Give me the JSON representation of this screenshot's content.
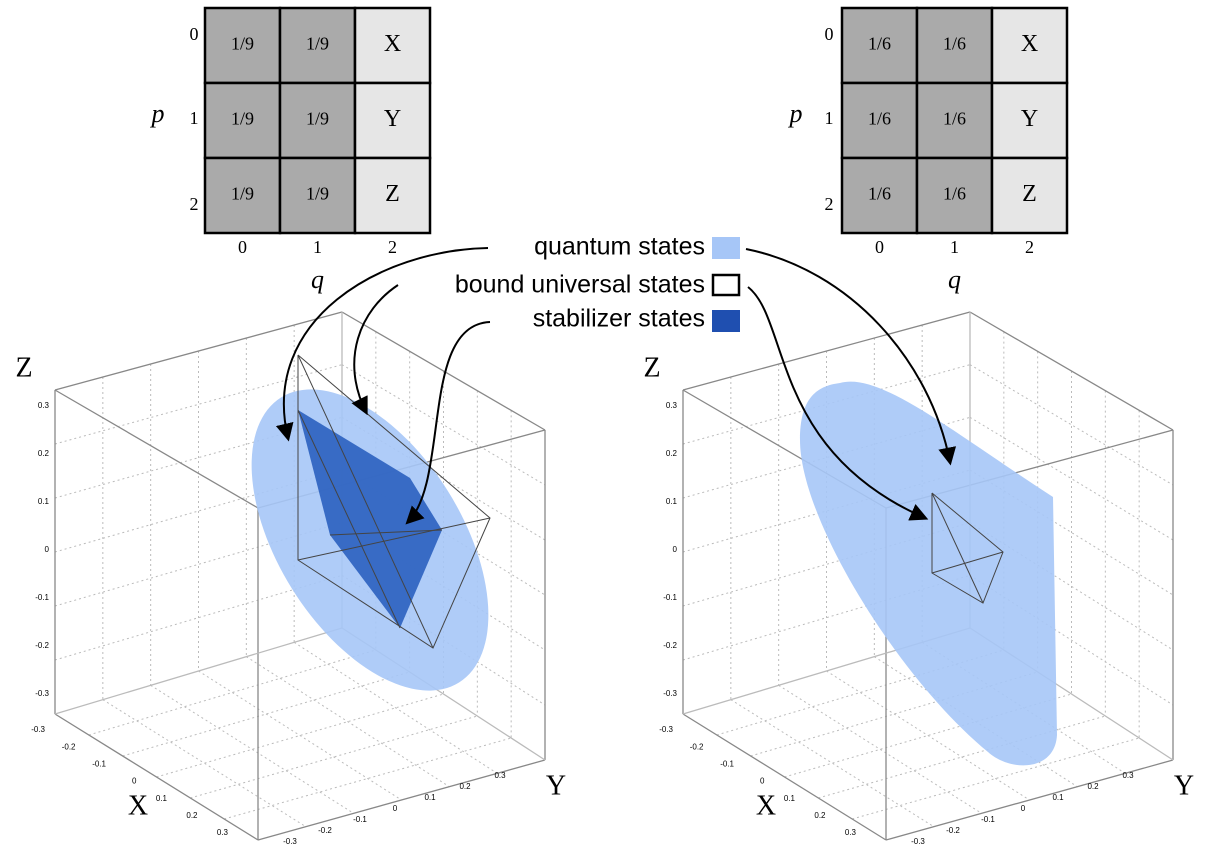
{
  "left_grid": {
    "rows": [
      [
        "1/9",
        "1/9",
        "X"
      ],
      [
        "1/9",
        "1/9",
        "Y"
      ],
      [
        "1/9",
        "1/9",
        "Z"
      ]
    ],
    "row_labels": [
      "0",
      "1",
      "2"
    ],
    "col_labels": [
      "0",
      "1",
      "2"
    ],
    "row_axis": "p",
    "col_axis": "q"
  },
  "right_grid": {
    "rows": [
      [
        "1/6",
        "1/6",
        "X"
      ],
      [
        "1/6",
        "1/6",
        "Y"
      ],
      [
        "1/6",
        "1/6",
        "Z"
      ]
    ],
    "row_labels": [
      "0",
      "1",
      "2"
    ],
    "col_labels": [
      "0",
      "1",
      "2"
    ],
    "row_axis": "p",
    "col_axis": "q"
  },
  "legend": {
    "items": [
      "quantum states",
      "bound universal states",
      "stabilizer states"
    ]
  },
  "left_plot": {
    "axis_labels": {
      "x": "X",
      "y": "Y",
      "z": "Z"
    },
    "z_ticks": [
      "0.3",
      "0.2",
      "0.1",
      "0",
      "-0.1",
      "-0.2",
      "-0.3"
    ],
    "x_ticks": [
      "-0.3",
      "-0.2",
      "-0.1",
      "0",
      "0.1",
      "0.2",
      "0.3"
    ],
    "y_ticks": [
      "-0.3",
      "-0.2",
      "-0.1",
      "0",
      "0.1",
      "0.2",
      "0.3"
    ]
  },
  "right_plot": {
    "axis_labels": {
      "x": "X",
      "y": "Y",
      "z": "Z"
    },
    "z_ticks": [
      "0.3",
      "0.2",
      "0.1",
      "0",
      "-0.1",
      "-0.2",
      "-0.3"
    ],
    "x_ticks": [
      "-0.3",
      "-0.2",
      "-0.1",
      "0",
      "0.1",
      "0.2",
      "0.3"
    ],
    "y_ticks": [
      "-0.3",
      "-0.2",
      "-0.1",
      "0",
      "0.1",
      "0.2",
      "0.3"
    ]
  }
}
